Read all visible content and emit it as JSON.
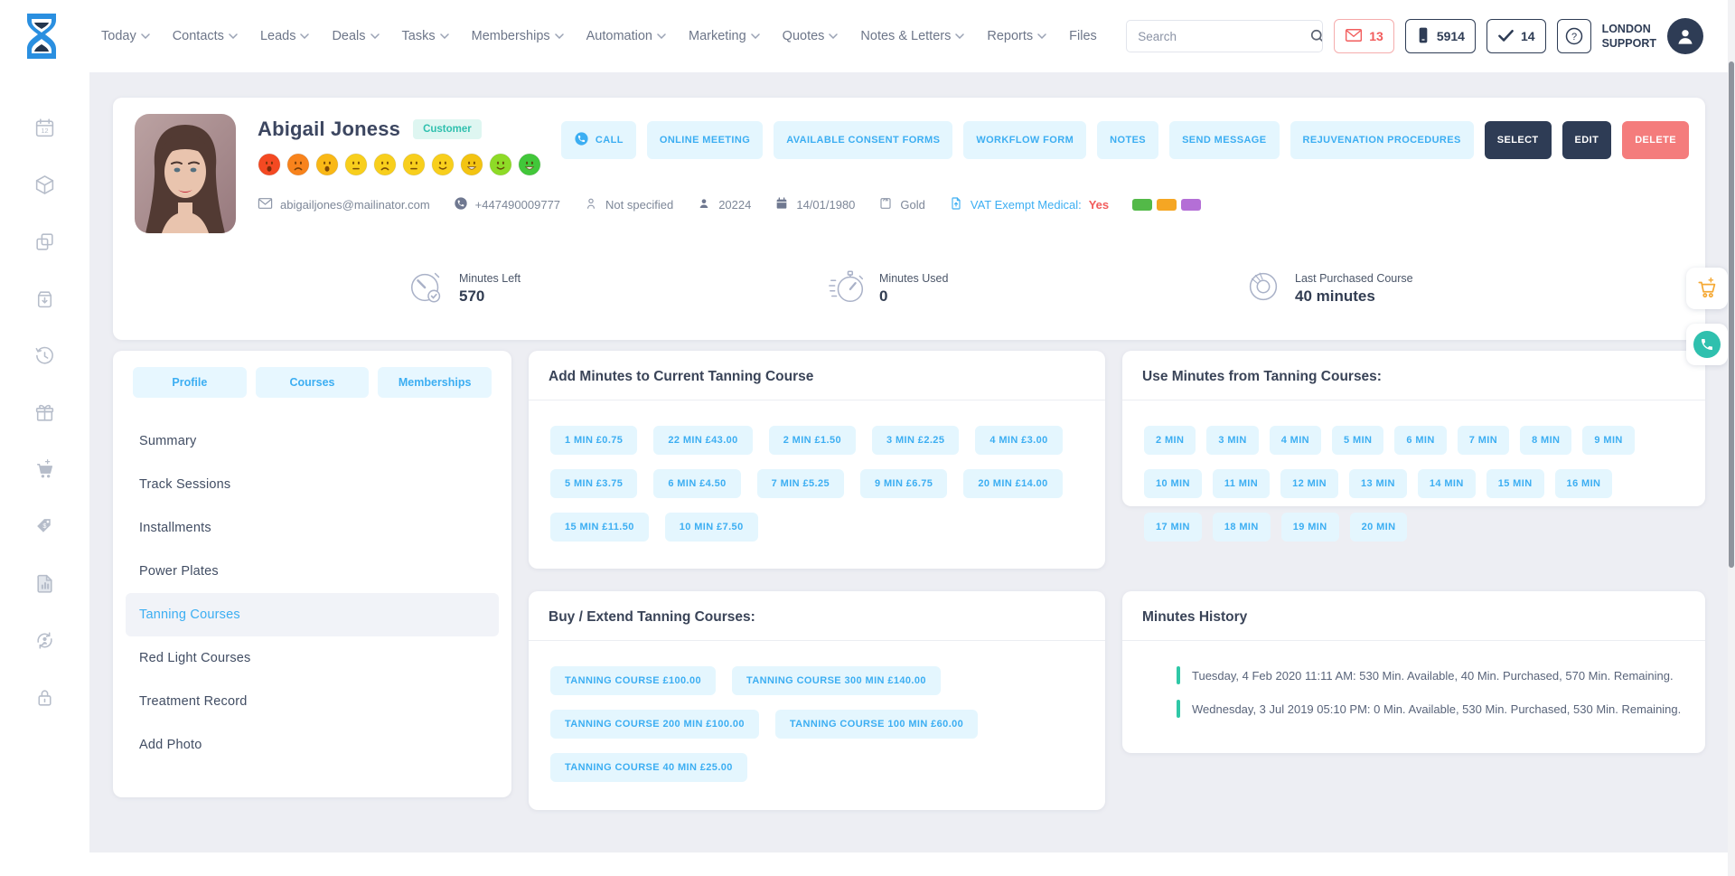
{
  "header": {
    "nav_items": [
      {
        "label": "Today",
        "has_dropdown": true
      },
      {
        "label": "Contacts",
        "has_dropdown": true
      },
      {
        "label": "Leads",
        "has_dropdown": true
      },
      {
        "label": "Deals",
        "has_dropdown": true
      },
      {
        "label": "Tasks",
        "has_dropdown": true
      },
      {
        "label": "Memberships",
        "has_dropdown": true
      },
      {
        "label": "Automation",
        "has_dropdown": true
      },
      {
        "label": "Marketing",
        "has_dropdown": true
      },
      {
        "label": "Quotes",
        "has_dropdown": true
      },
      {
        "label": "Notes & Letters",
        "has_dropdown": true
      },
      {
        "label": "Reports",
        "has_dropdown": true
      },
      {
        "label": "Files",
        "has_dropdown": false
      }
    ],
    "search": {
      "placeholder": "Search"
    },
    "badges": {
      "messages": "13",
      "calls": "5914",
      "tasks": "14"
    },
    "support": {
      "line1": "LONDON",
      "line2": "SUPPORT"
    }
  },
  "sidebar": {
    "icons": [
      {
        "name": "calendar-date-icon"
      },
      {
        "name": "package-icon"
      },
      {
        "name": "duplicate-icon"
      },
      {
        "name": "archive-icon"
      },
      {
        "name": "history-icon"
      },
      {
        "name": "gift-icon"
      },
      {
        "name": "cart-icon"
      },
      {
        "name": "price-tag-icon"
      },
      {
        "name": "report-icon"
      },
      {
        "name": "user-sync-icon"
      },
      {
        "name": "lock-icon"
      }
    ]
  },
  "customer": {
    "name": "Abigail Joness",
    "type_badge": "Customer",
    "moods": [
      {
        "name": "mood-1",
        "color": "#f44922",
        "mouth": "open-frown"
      },
      {
        "name": "mood-2",
        "color": "#f8831c",
        "mouth": "frown"
      },
      {
        "name": "mood-3",
        "color": "#f9b816",
        "mouth": "open-frown"
      },
      {
        "name": "mood-4",
        "color": "#f8cf1c",
        "mouth": "neutral"
      },
      {
        "name": "mood-5",
        "color": "#f8cf1c",
        "mouth": "frown"
      },
      {
        "name": "mood-6",
        "color": "#f8cf1c",
        "mouth": "neutral"
      },
      {
        "name": "mood-7",
        "color": "#f8cf1c",
        "mouth": "smile"
      },
      {
        "name": "mood-8",
        "color": "#f3c412",
        "mouth": "grin"
      },
      {
        "name": "mood-9",
        "color": "#8edb27",
        "mouth": "smile"
      },
      {
        "name": "mood-10",
        "color": "#42c73a",
        "mouth": "grin"
      }
    ],
    "details": [
      {
        "icon": "email-icon",
        "text": "abigailjones@mailinator.com"
      },
      {
        "icon": "phone-icon",
        "text": "+447490009777"
      },
      {
        "icon": "person-outline-icon",
        "text": "Not specified"
      },
      {
        "icon": "user-id-icon",
        "text": "20224"
      },
      {
        "icon": "calendar-icon",
        "text": "14/01/1980"
      },
      {
        "icon": "membership-icon",
        "text": "Gold"
      }
    ],
    "vat": {
      "label": "VAT Exempt Medical:",
      "value": "Yes"
    },
    "color_tags": [
      "#53b948",
      "#f5a623",
      "#b46fd6"
    ],
    "actions": [
      {
        "label": "CALL",
        "style": "light",
        "icon": "call-icon"
      },
      {
        "label": "ONLINE MEETING",
        "style": "light"
      },
      {
        "label": "AVAILABLE CONSENT FORMS",
        "style": "light"
      },
      {
        "label": "WORKFLOW FORM",
        "style": "light"
      },
      {
        "label": "NOTES",
        "style": "light"
      },
      {
        "label": "SEND MESSAGE",
        "style": "light"
      },
      {
        "label": "REJUVENATION PROCEDURES",
        "style": "light"
      },
      {
        "label": "SELECT",
        "style": "dark"
      },
      {
        "label": "EDIT",
        "style": "dark"
      },
      {
        "label": "DELETE",
        "style": "danger"
      }
    ],
    "stats": [
      {
        "icon": "timer-check-icon",
        "label": "Minutes Left",
        "value": "570"
      },
      {
        "icon": "stopwatch-icon",
        "label": "Minutes Used",
        "value": "0"
      },
      {
        "icon": "course-icon",
        "label": "Last Purchased Course",
        "value": "40 minutes"
      }
    ]
  },
  "left_panel": {
    "tabs": [
      "Profile",
      "Courses",
      "Memberships"
    ],
    "menu_items": [
      "Summary",
      "Track Sessions",
      "Installments",
      "Power Plates",
      "Tanning Courses",
      "Red Light Courses",
      "Treatment Record",
      "Add Photo"
    ],
    "active_item": "Tanning Courses"
  },
  "add_minutes": {
    "title": "Add Minutes to Current Tanning Course",
    "rows": [
      [
        "1 MIN £0.75",
        "22 MIN £43.00",
        "2 MIN £1.50",
        "3 MIN £2.25",
        "4 MIN £3.00"
      ],
      [
        "5 MIN £3.75",
        "6 MIN £4.50",
        "7 MIN £5.25",
        "9 MIN £6.75",
        "20 MIN £14.00"
      ],
      [
        "15 MIN £11.50",
        "10 MIN £7.50"
      ]
    ]
  },
  "use_minutes": {
    "title": "Use Minutes from Tanning Courses:",
    "rows": [
      [
        "2 MIN",
        "3 MIN",
        "4 MIN",
        "5 MIN",
        "6 MIN",
        "7 MIN",
        "8 MIN",
        "9 MIN"
      ],
      [
        "10 MIN",
        "11 MIN",
        "12 MIN",
        "13 MIN",
        "14 MIN",
        "15 MIN",
        "16 MIN"
      ],
      [
        "17 MIN",
        "18 MIN",
        "19 MIN",
        "20 MIN"
      ]
    ]
  },
  "buy_courses": {
    "title": "Buy / Extend Tanning Courses:",
    "rows": [
      [
        "TANNING COURSE £100.00",
        "TANNING COURSE 300 MIN £140.00"
      ],
      [
        "TANNING COURSE 200 MIN £100.00",
        "TANNING COURSE 100 MIN £60.00"
      ],
      [
        "TANNING COURSE 40 MIN £25.00"
      ]
    ]
  },
  "minutes_history": {
    "title": "Minutes History",
    "entries": [
      "Tuesday, 4 Feb 2020 11:11 AM: 530 Min. Available, 40 Min. Purchased, 570 Min. Remaining.",
      "Wednesday, 3 Jul 2019 05:10 PM: 0 Min. Available, 530 Min. Purchased, 530 Min. Remaining."
    ]
  }
}
